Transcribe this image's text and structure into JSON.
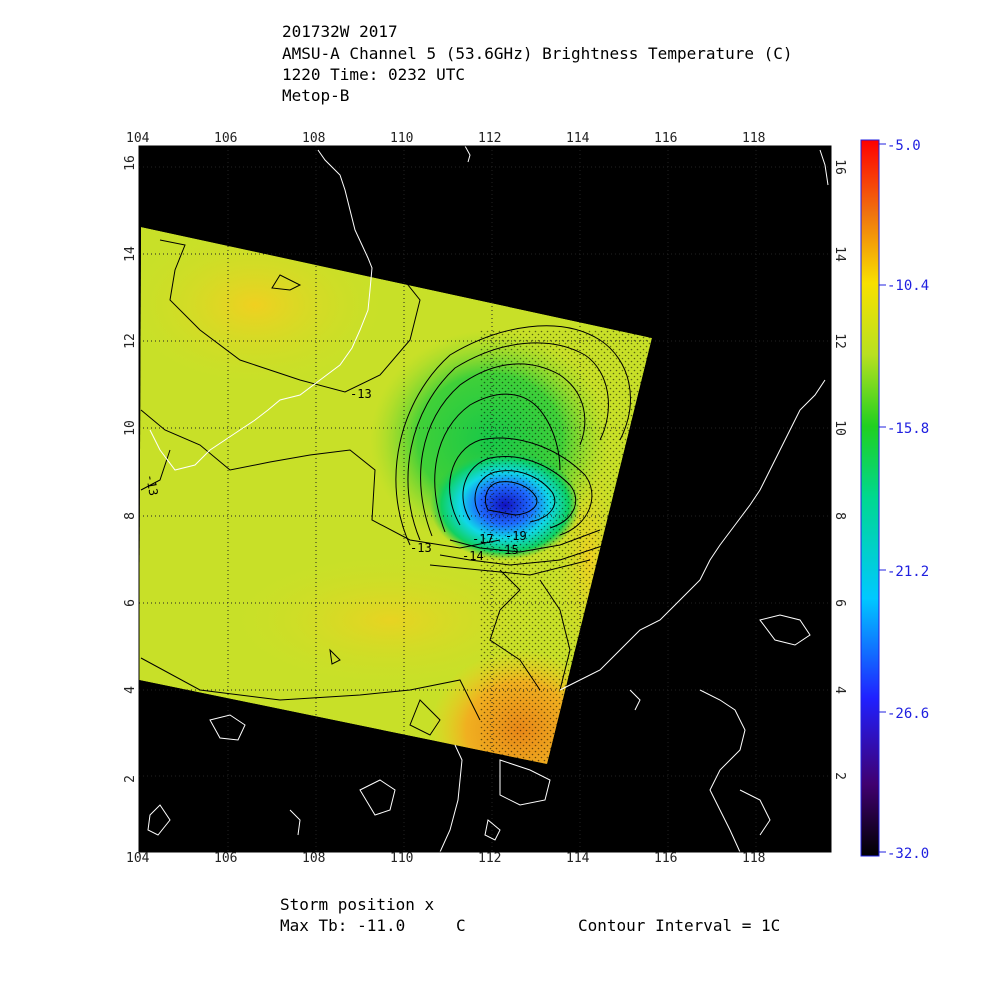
{
  "header": {
    "storm_id": "201732W 2017",
    "product": "AMSU-A Channel 5 (53.6GHz) Brightness Temperature (C)",
    "time": "1220 Time: 0232 UTC",
    "satellite": "Metop-B"
  },
  "footer": {
    "storm_position": "Storm position x",
    "max_tb_label": "Max Tb: -11.0",
    "max_tb_unit": "C",
    "contour_interval": "Contour Interval = 1C"
  },
  "map": {
    "lon_ticks": [
      "104",
      "106",
      "108",
      "110",
      "112",
      "114",
      "116",
      "118"
    ],
    "lat_ticks": [
      "2",
      "4",
      "6",
      "8",
      "10",
      "12",
      "14",
      "16"
    ],
    "lon_range": [
      104,
      120
    ],
    "lat_range": [
      0.2,
      16.4
    ],
    "storm_center": {
      "lon": 112.5,
      "lat": 8.3
    },
    "contour_labels": [
      "-13",
      "-13",
      "-13",
      "-14",
      "-15",
      "-17",
      "-19"
    ]
  },
  "colorbar": {
    "labels": [
      "-5.0",
      "-10.4",
      "-15.8",
      "-21.2",
      "-26.6",
      "-32.0"
    ],
    "min": -32.0,
    "max": -5.0
  },
  "colors": {
    "background": "#000000",
    "coast": "#ffffff",
    "label_blue": "#2020e0"
  }
}
